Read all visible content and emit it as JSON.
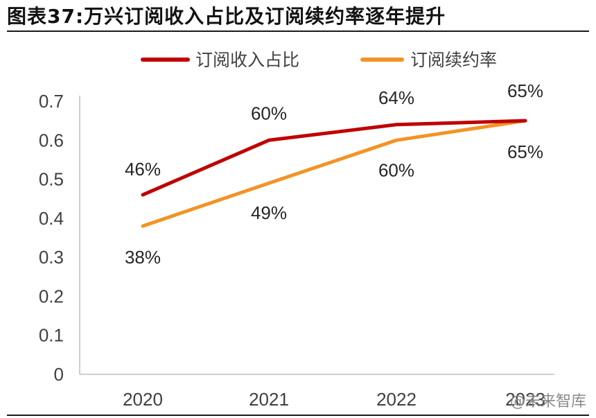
{
  "title": "图表37:万兴订阅收入占比及订阅续约率逐年提升",
  "watermark": "@未来智库",
  "chart_data": {
    "type": "line",
    "title": "图表37:万兴订阅收入占比及订阅续约率逐年提升",
    "categories": [
      "2020",
      "2021",
      "2022",
      "2023"
    ],
    "ylim": [
      0,
      0.7
    ],
    "yticks": [
      "0",
      "0.1",
      "0.2",
      "0.3",
      "0.4",
      "0.5",
      "0.6",
      "0.7"
    ],
    "grid": false,
    "legend": "top",
    "series": [
      {
        "name": "订阅收入占比",
        "color": "#C00000",
        "values": [
          0.46,
          0.6,
          0.64,
          0.65
        ],
        "labels": [
          "46%",
          "60%",
          "64%",
          "65%"
        ],
        "label_position": "above"
      },
      {
        "name": "订阅续约率",
        "color": "#F39325",
        "values": [
          0.38,
          0.49,
          0.6,
          0.65
        ],
        "labels": [
          "38%",
          "49%",
          "60%",
          "65%"
        ],
        "label_position": "below"
      }
    ]
  }
}
